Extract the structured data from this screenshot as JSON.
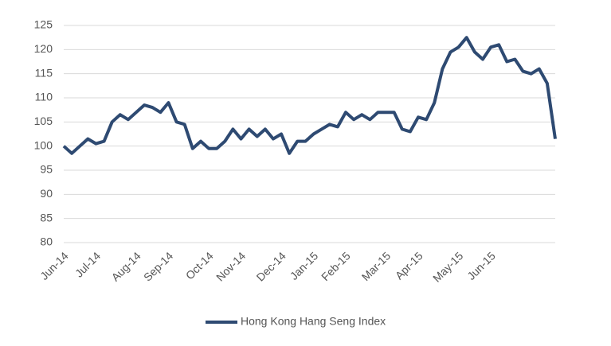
{
  "chart_data": {
    "type": "line",
    "categories": [
      "Jun-14",
      null,
      null,
      null,
      "Jul-14",
      null,
      null,
      null,
      null,
      "Aug-14",
      null,
      null,
      null,
      "Sep-14",
      null,
      null,
      null,
      null,
      "Oct-14",
      null,
      null,
      null,
      "Nov-14",
      null,
      null,
      null,
      null,
      "Dec-14",
      null,
      null,
      null,
      "Jan-15",
      null,
      null,
      null,
      "Feb-15",
      null,
      null,
      null,
      null,
      "Mar-15",
      null,
      null,
      null,
      "Apr-15",
      null,
      null,
      null,
      null,
      "May-15",
      null,
      null,
      null,
      "Jun-15",
      null,
      null,
      null,
      null,
      null,
      null,
      null,
      null
    ],
    "series": [
      {
        "name": "Hong Kong Hang Seng Index",
        "color": "#2e4a72",
        "values": [
          100,
          98.5,
          100,
          101.5,
          100.5,
          101,
          105,
          106.5,
          105.5,
          107,
          108.5,
          108,
          107,
          109,
          105,
          104.5,
          99.5,
          101,
          99.5,
          99.5,
          101,
          103.5,
          101.5,
          103.5,
          102,
          103.5,
          101.5,
          102.5,
          98.5,
          101,
          101,
          102.5,
          103.5,
          104.5,
          104,
          107,
          105.5,
          106.5,
          105.5,
          107,
          107,
          107,
          103.5,
          103,
          106,
          105.5,
          109,
          116,
          119.5,
          120.5,
          122.5,
          119.5,
          118,
          120.5,
          121,
          117.5,
          118,
          115.5,
          115,
          116,
          113,
          101.5
        ]
      }
    ],
    "ylim": [
      80,
      125
    ],
    "yticks": [
      80,
      85,
      90,
      95,
      100,
      105,
      110,
      115,
      120,
      125
    ],
    "grid": true,
    "legend": "bottom"
  }
}
